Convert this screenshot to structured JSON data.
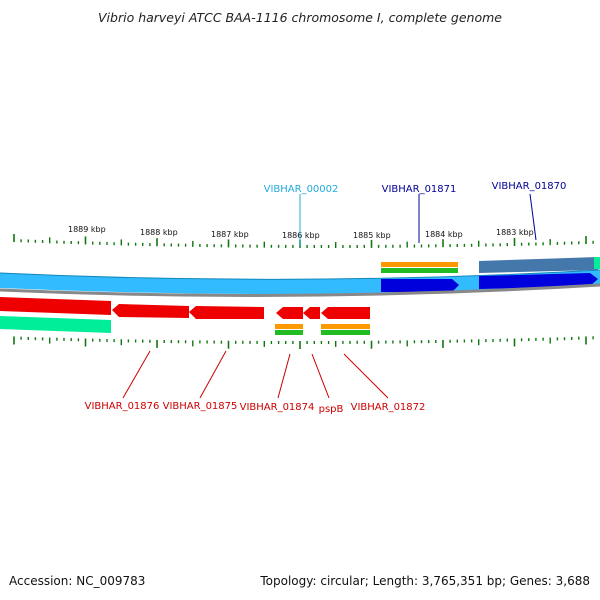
{
  "title": "Vibrio harveyi ATCC BAA-1116 chromosome I, complete genome",
  "footer": {
    "accession": "Accession: NC_009783",
    "summary": "Topology: circular; Length: 3,765,351 bp; Genes: 3,688"
  },
  "colors": {
    "forward_cds": "#0000dd",
    "reverse_cds": "#ee0000",
    "forward_track": "#33bbff",
    "reverse_track": "#00ee99",
    "orange_track": "#ff9900",
    "green_track": "#22bb22",
    "steel_blue": "#4477aa",
    "tick": "#117711",
    "label_light_blue": "#22aadd",
    "label_dark_blue": "#000099",
    "label_red": "#cc0000"
  },
  "scale_labels": [
    "1889 kbp",
    "1888 kbp",
    "1887 kbp",
    "1886 kbp",
    "1885 kbp",
    "1884 kbp",
    "1883 kbp"
  ],
  "gene_labels": [
    {
      "text": "VIBHAR_00002",
      "color": "label_light_blue"
    },
    {
      "text": "VIBHAR_01871",
      "color": "label_dark_blue"
    },
    {
      "text": "VIBHAR_01870",
      "color": "label_dark_blue"
    },
    {
      "text": "VIBHAR_01876",
      "color": "label_red"
    },
    {
      "text": "VIBHAR_01875",
      "color": "label_red"
    },
    {
      "text": "VIBHAR_01874",
      "color": "label_red"
    },
    {
      "text": "pspB",
      "color": "label_red"
    },
    {
      "text": "VIBHAR_01872",
      "color": "label_red"
    }
  ]
}
